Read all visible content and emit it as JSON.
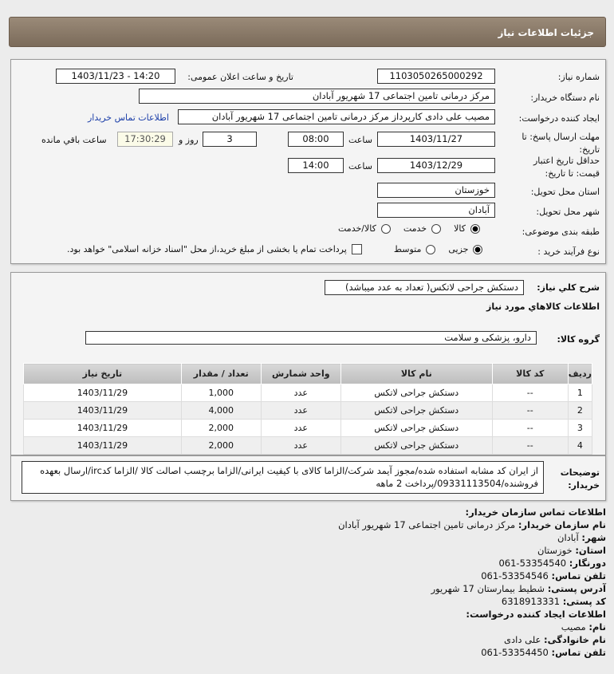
{
  "header": {
    "title": "جزئیات اطلاعات نیاز"
  },
  "form": {
    "need_number_label": "شماره نیاز:",
    "need_number": "1103050265000292",
    "announce_label": "تاریخ و ساعت اعلان عمومی:",
    "announce_value": "1403/11/23 - 14:20",
    "buyer_org_label": "نام دستگاه خریدار:",
    "buyer_org": "مرکز درمانی تامین اجتماعی 17 شهریور آبادان",
    "creator_label": "ایجاد کننده درخواست:",
    "creator": "مصیب علی دادی کارپرداز مرکز درمانی تامین اجتماعی 17 شهریور آبادان",
    "contact_link": "اطلاعات تماس خریدار",
    "deadline_label": "مهلت ارسال پاسخ: تا تاریخ:",
    "deadline_date": "1403/11/27",
    "time_label": "ساعت",
    "deadline_time": "08:00",
    "days": "3",
    "days_label": "روز و",
    "remaining": "17:30:29",
    "remaining_label": "ساعت باقي مانده",
    "validity_label": "حداقل تاریخ اعتبار قیمت: تا تاریخ:",
    "validity_date": "1403/12/29",
    "validity_time": "14:00",
    "province_label": "استان محل تحویل:",
    "province": "خوزستان",
    "city_label": "شهر محل تحویل:",
    "city": "آبادان",
    "category_label": "طبقه بندی موضوعی:",
    "category_options": [
      "کالا",
      "خدمت",
      "کالا/خدمت"
    ],
    "category_selected": "کالا",
    "process_label": "نوع فرآیند خرید :",
    "process_options": [
      "جزیی",
      "متوسط"
    ],
    "process_selected": "جزیی",
    "payment_note": "پرداخت تمام یا بخشی از مبلغ خرید،از محل \"اسناد خزانه اسلامی\" خواهد بود."
  },
  "summary": {
    "label": "شرح کلي نیاز:",
    "value": "دستکش جراحی لاتکس( تعداد به عدد میباشد)",
    "goods_title": "اطلاعات کالاهاي مورد نیاز",
    "group_label": "گروه کالا:",
    "group_value": "دارو، پزشکی و سلامت"
  },
  "table": {
    "headers": [
      "ردیف",
      "کد کالا",
      "نام کالا",
      "واحد شمارش",
      "تعداد / مقدار",
      "تاریخ نیاز"
    ],
    "rows": [
      [
        "1",
        "--",
        "دستکش جراحی لاتکس",
        "عدد",
        "1,000",
        "1403/11/29"
      ],
      [
        "2",
        "--",
        "دستکش جراحی لاتکس",
        "عدد",
        "4,000",
        "1403/11/29"
      ],
      [
        "3",
        "--",
        "دستکش جراحی لاتکس",
        "عدد",
        "2,000",
        "1403/11/29"
      ],
      [
        "4",
        "--",
        "دستکش جراحی لاتکس",
        "عدد",
        "2,000",
        "1403/11/29"
      ]
    ]
  },
  "notes": {
    "label": "توضیحات خریدار:",
    "text": "از ایران کد مشابه استفاده شده/مجوز آیمد شرکت/الزاما کالای با کیفیت ایرانی/الزاما برچسب اصالت کالا /الزاما کدirc/ارسال بعهده فروشنده/09331113504/پرداخت 2 ماهه"
  },
  "contact": {
    "title": "اطلاعات تماس سازمان خریدار:",
    "items": [
      {
        "k": "نام سازمان خریدار:",
        "v": "مرکز درمانی تامین اجتماعی 17 شهریور آبادان"
      },
      {
        "k": "شهر:",
        "v": "آبادان"
      },
      {
        "k": "استان:",
        "v": "خوزستان"
      },
      {
        "k": "دورنگار:",
        "v": "53354540-061"
      },
      {
        "k": "تلفن تماس:",
        "v": "53354546-061"
      },
      {
        "k": "آدرس پستی:",
        "v": "شطیط بیمارستان 17 شهریور"
      },
      {
        "k": "کد پستی:",
        "v": "6318913331"
      }
    ],
    "creator_title": "اطلاعات ایجاد کننده درخواست:",
    "creator_items": [
      {
        "k": "نام:",
        "v": "مصیب"
      },
      {
        "k": "نام خانوادگی:",
        "v": "علی دادی"
      },
      {
        "k": "تلفن تماس:",
        "v": "53354450-061"
      }
    ]
  }
}
